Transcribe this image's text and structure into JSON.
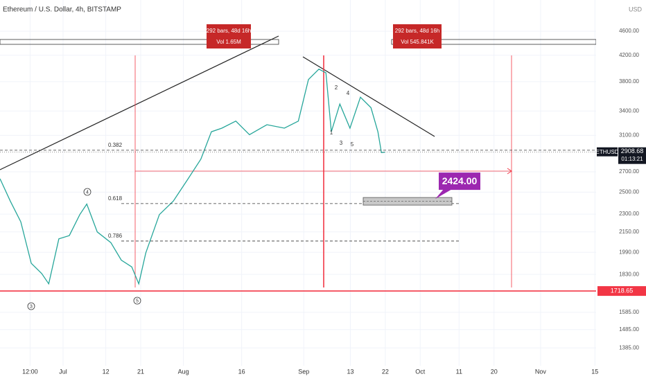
{
  "header": {
    "title": "Ethereum / U.S. Dollar, 4h, BITSTAMP",
    "currency": "USD"
  },
  "chart_data": {
    "type": "line",
    "x": [
      165.75,
      168.4,
      171.1,
      173.8,
      176.5,
      178.3,
      180.9,
      183.6,
      186.3,
      188.1,
      190.8,
      194.3,
      197,
      199.7,
      201.5,
      203.3,
      206.8,
      210.4,
      214,
      217.5,
      220.2,
      222.9,
      226.5,
      230,
      234.5,
      239,
      242.6,
      245.2,
      247.9,
      249.7,
      251.1,
      253.3,
      255.9,
      258.6,
      261.3,
      263.1,
      264,
      264.9
    ],
    "series": [
      {
        "name": "ETHUSD",
        "color": "#26a69a",
        "values": [
          2630,
          2417,
          2234,
          1909,
          1836,
          1766,
          2094,
          2120,
          2296,
          2389,
          2150,
          2065,
          1932,
          1883,
          1766,
          1985,
          2296,
          2417,
          2617,
          2833,
          3143,
          3186,
          3272,
          3108,
          3228,
          3186,
          3272,
          3831,
          3985,
          3930,
          3143,
          3491,
          3186,
          3583,
          3443,
          3143,
          2904,
          2908.68
        ]
      }
    ],
    "xlim": [
      165.75,
      319.3
    ],
    "ylim": [
      1222,
      5178
    ],
    "log_scale": true,
    "grid": true,
    "xticks": [
      {
        "value": 173.5,
        "label": "12:00"
      },
      {
        "value": 182,
        "label": "Jul"
      },
      {
        "value": 193,
        "label": "12"
      },
      {
        "value": 202,
        "label": "21"
      },
      {
        "value": 213,
        "label": "Aug"
      },
      {
        "value": 228,
        "label": "16"
      },
      {
        "value": 244,
        "label": "Sep"
      },
      {
        "value": 256,
        "label": "13"
      },
      {
        "value": 265,
        "label": "22"
      },
      {
        "value": 274,
        "label": "Oct"
      },
      {
        "value": 284,
        "label": "11"
      },
      {
        "value": 293,
        "label": "20"
      },
      {
        "value": 305,
        "label": "Nov"
      },
      {
        "value": 319,
        "label": "15"
      }
    ],
    "yticks": [
      {
        "value": 4600,
        "label": "4600.00"
      },
      {
        "value": 4200,
        "label": "4200.00"
      },
      {
        "value": 3800,
        "label": "3800.00"
      },
      {
        "value": 3400,
        "label": "3400.00"
      },
      {
        "value": 3100,
        "label": "3100.00"
      },
      {
        "value": 2700,
        "label": "2700.00"
      },
      {
        "value": 2500,
        "label": "2500.00"
      },
      {
        "value": 2300,
        "label": "2300.00"
      },
      {
        "value": 2150,
        "label": "2150.00"
      },
      {
        "value": 1990,
        "label": "1990.00"
      },
      {
        "value": 1830,
        "label": "1830.00"
      },
      {
        "value": 1585,
        "label": "1585.00"
      },
      {
        "value": 1485,
        "label": "1485.00"
      },
      {
        "value": 1385,
        "label": "1385.00"
      }
    ],
    "last_price": 2908.68,
    "countdown": "01:13:21",
    "support": 1718.65,
    "target": {
      "value": 2424,
      "label": "2424.00"
    },
    "fib_levels": [
      {
        "ratio": 0.382,
        "price": 2930
      },
      {
        "ratio": 0.618,
        "price": 2394
      },
      {
        "ratio": 0.786,
        "price": 2077
      }
    ],
    "measures": [
      {
        "bars": "292 bars, 48d 16h",
        "vol": "Vol 1.65M"
      },
      {
        "bars": "292 bars, 48d 16h",
        "vol": "Vol 545.841K"
      }
    ],
    "wave_labels": [
      "1",
      "2",
      "3",
      "4",
      "5"
    ],
    "circled_labels": [
      "3",
      "4",
      "5"
    ]
  }
}
